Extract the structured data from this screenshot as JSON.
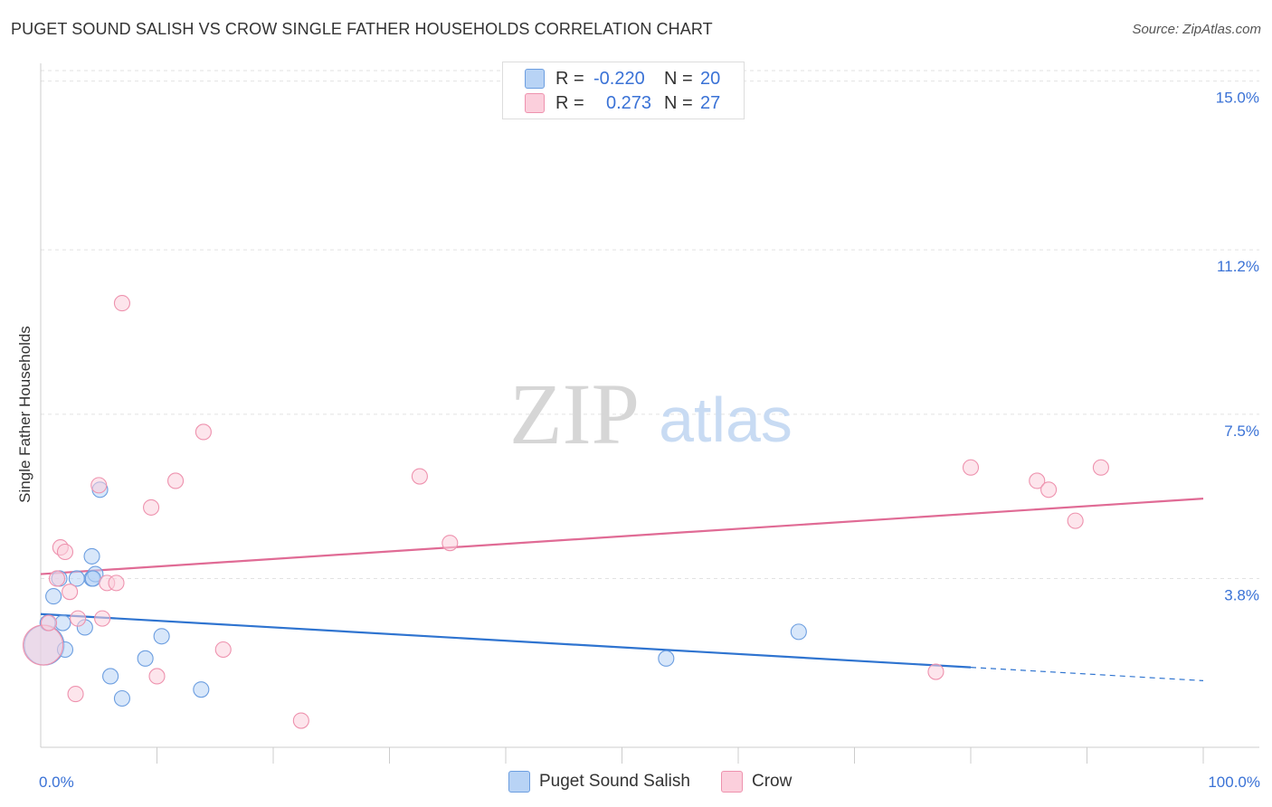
{
  "header": {
    "title": "PUGET SOUND SALISH VS CROW SINGLE FATHER HOUSEHOLDS CORRELATION CHART",
    "source": "Source: ZipAtlas.com"
  },
  "watermark": {
    "zip": "ZIP",
    "atlas": "atlas"
  },
  "legend": {
    "rows": [
      {
        "r_label": "R =",
        "r_value": "-0.220",
        "n_label": "N =",
        "n_value": "20"
      },
      {
        "r_label": "R =",
        "r_value": "0.273",
        "n_label": "N =",
        "n_value": "27"
      }
    ]
  },
  "chart_data": {
    "type": "scatter",
    "title": "PUGET SOUND SALISH VS CROW SINGLE FATHER HOUSEHOLDS CORRELATION CHART",
    "xlabel": "",
    "ylabel": "Single Father Households",
    "xlim": [
      0,
      100
    ],
    "ylim": [
      0,
      15.4
    ],
    "x_tick_labels": [
      "0.0%",
      "100.0%"
    ],
    "y_ticks": [
      3.8,
      7.5,
      11.2,
      15.0
    ],
    "y_tick_labels": [
      "3.8%",
      "7.5%",
      "11.2%",
      "15.0%"
    ],
    "grid": true,
    "legend_position": "bottom-center",
    "series": [
      {
        "name": "Puget Sound Salish",
        "color": "#6c9ee0",
        "fill": "#b8d3f5",
        "points": [
          {
            "x": 0.3,
            "y": 2.3,
            "big": true
          },
          {
            "x": 0.6,
            "y": 2.8
          },
          {
            "x": 1.1,
            "y": 3.4
          },
          {
            "x": 1.6,
            "y": 3.8
          },
          {
            "x": 1.9,
            "y": 2.8
          },
          {
            "x": 2.1,
            "y": 2.2
          },
          {
            "x": 4.4,
            "y": 3.8
          },
          {
            "x": 4.7,
            "y": 3.9
          },
          {
            "x": 5.1,
            "y": 5.8
          },
          {
            "x": 4.5,
            "y": 3.8
          },
          {
            "x": 3.8,
            "y": 2.7
          },
          {
            "x": 6.0,
            "y": 1.6
          },
          {
            "x": 3.1,
            "y": 3.8
          },
          {
            "x": 4.4,
            "y": 4.3
          },
          {
            "x": 7.0,
            "y": 1.1
          },
          {
            "x": 9.0,
            "y": 2.0
          },
          {
            "x": 10.4,
            "y": 2.5
          },
          {
            "x": 13.8,
            "y": 1.3
          },
          {
            "x": 53.8,
            "y": 2.0
          },
          {
            "x": 65.2,
            "y": 2.6
          }
        ],
        "trend": {
          "x0": 0,
          "y0": 3.0,
          "x1": 80,
          "y1": 1.8,
          "dash_x1": 100,
          "dash_y1": 1.5
        }
      },
      {
        "name": "Crow",
        "color": "#ee92ae",
        "fill": "#fbcfdc",
        "points": [
          {
            "x": 0.2,
            "y": 2.3,
            "big": true
          },
          {
            "x": 0.7,
            "y": 2.8
          },
          {
            "x": 1.4,
            "y": 3.8
          },
          {
            "x": 1.7,
            "y": 4.5
          },
          {
            "x": 2.1,
            "y": 4.4
          },
          {
            "x": 2.5,
            "y": 3.5
          },
          {
            "x": 3.0,
            "y": 1.2
          },
          {
            "x": 3.2,
            "y": 2.9
          },
          {
            "x": 5.0,
            "y": 5.9
          },
          {
            "x": 5.7,
            "y": 3.7
          },
          {
            "x": 6.5,
            "y": 3.7
          },
          {
            "x": 7.0,
            "y": 10.0
          },
          {
            "x": 5.3,
            "y": 2.9
          },
          {
            "x": 9.5,
            "y": 5.4
          },
          {
            "x": 11.6,
            "y": 6.0
          },
          {
            "x": 14.0,
            "y": 7.1
          },
          {
            "x": 10.0,
            "y": 1.6
          },
          {
            "x": 15.7,
            "y": 2.2
          },
          {
            "x": 22.4,
            "y": 0.6
          },
          {
            "x": 32.6,
            "y": 6.1
          },
          {
            "x": 35.2,
            "y": 4.6
          },
          {
            "x": 77.0,
            "y": 1.7
          },
          {
            "x": 80.0,
            "y": 6.3
          },
          {
            "x": 85.7,
            "y": 6.0
          },
          {
            "x": 86.7,
            "y": 5.8
          },
          {
            "x": 89.0,
            "y": 5.1
          },
          {
            "x": 91.2,
            "y": 6.3
          }
        ],
        "trend": {
          "x0": 0,
          "y0": 3.9,
          "x1": 100,
          "y1": 5.6
        }
      }
    ]
  }
}
